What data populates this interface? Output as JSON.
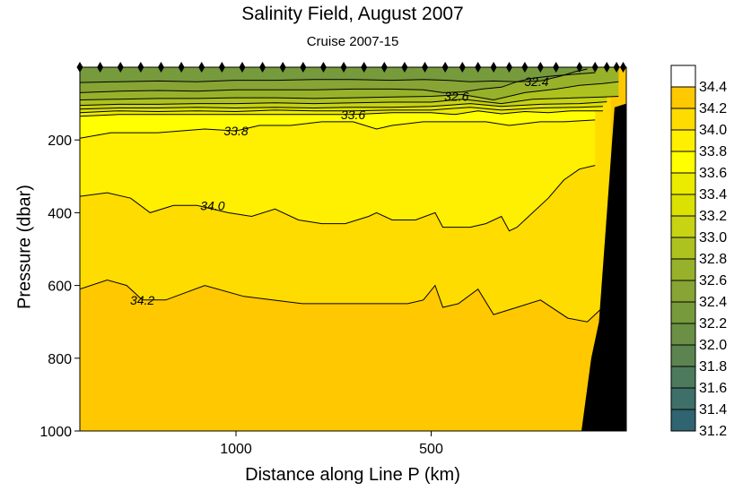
{
  "chart_data": {
    "type": "contour",
    "title": "Salinity Field,  August 2007",
    "subtitle": "Cruise 2007-15",
    "xlabel": "Distance along Line P  (km)",
    "ylabel": "Pressure  (dbar)",
    "x_axis": {
      "min": 1400,
      "max": 0,
      "reversed": true,
      "ticks": [
        1000,
        500
      ]
    },
    "y_axis": {
      "min": 0,
      "max": 1000,
      "reversed": true,
      "ticks": [
        200,
        400,
        600,
        800,
        1000
      ]
    },
    "contour_labels": [
      {
        "text": "32.4",
        "x": 230,
        "y": 40
      },
      {
        "text": "32.6",
        "x": 435,
        "y": 80
      },
      {
        "text": "33.6",
        "x": 700,
        "y": 130
      },
      {
        "text": "33.8",
        "x": 1000,
        "y": 175
      },
      {
        "text": "34.0",
        "x": 1060,
        "y": 380
      },
      {
        "text": "34.2",
        "x": 1240,
        "y": 640
      }
    ],
    "isolines": [
      {
        "value": 34.2,
        "points": [
          [
            1400,
            610
          ],
          [
            1330,
            585
          ],
          [
            1280,
            600
          ],
          [
            1240,
            640
          ],
          [
            1180,
            640
          ],
          [
            1080,
            600
          ],
          [
            980,
            630
          ],
          [
            830,
            650
          ],
          [
            700,
            650
          ],
          [
            560,
            650
          ],
          [
            520,
            640
          ],
          [
            490,
            600
          ],
          [
            470,
            660
          ],
          [
            430,
            650
          ],
          [
            380,
            610
          ],
          [
            340,
            680
          ],
          [
            280,
            660
          ],
          [
            220,
            640
          ],
          [
            150,
            690
          ],
          [
            100,
            700
          ],
          [
            40,
            640
          ]
        ]
      },
      {
        "value": 34.0,
        "points": [
          [
            1400,
            355
          ],
          [
            1330,
            345
          ],
          [
            1270,
            360
          ],
          [
            1220,
            400
          ],
          [
            1160,
            380
          ],
          [
            1100,
            380
          ],
          [
            1020,
            400
          ],
          [
            960,
            410
          ],
          [
            900,
            390
          ],
          [
            840,
            420
          ],
          [
            780,
            430
          ],
          [
            720,
            430
          ],
          [
            660,
            410
          ],
          [
            640,
            400
          ],
          [
            600,
            420
          ],
          [
            540,
            420
          ],
          [
            490,
            400
          ],
          [
            470,
            440
          ],
          [
            400,
            440
          ],
          [
            360,
            430
          ],
          [
            320,
            410
          ],
          [
            300,
            450
          ],
          [
            280,
            440
          ],
          [
            240,
            400
          ],
          [
            200,
            360
          ],
          [
            160,
            310
          ],
          [
            120,
            280
          ],
          [
            80,
            270
          ]
        ]
      },
      {
        "value": 33.8,
        "points": [
          [
            1400,
            195
          ],
          [
            1320,
            180
          ],
          [
            1200,
            180
          ],
          [
            1080,
            170
          ],
          [
            1000,
            175
          ],
          [
            940,
            160
          ],
          [
            860,
            160
          ],
          [
            780,
            150
          ],
          [
            700,
            150
          ],
          [
            640,
            170
          ],
          [
            600,
            160
          ],
          [
            520,
            150
          ],
          [
            450,
            150
          ],
          [
            360,
            150
          ],
          [
            300,
            160
          ],
          [
            220,
            150
          ],
          [
            160,
            150
          ],
          [
            80,
            145
          ]
        ]
      },
      {
        "value": 33.6,
        "points": [
          [
            1400,
            135
          ],
          [
            1300,
            130
          ],
          [
            1200,
            130
          ],
          [
            1100,
            130
          ],
          [
            1000,
            130
          ],
          [
            900,
            130
          ],
          [
            800,
            130
          ],
          [
            700,
            130
          ],
          [
            600,
            125
          ],
          [
            500,
            125
          ],
          [
            440,
            130
          ],
          [
            380,
            120
          ],
          [
            320,
            128
          ],
          [
            260,
            122
          ],
          [
            200,
            125
          ],
          [
            140,
            120
          ],
          [
            60,
            120
          ]
        ]
      },
      {
        "value": 33.4,
        "points": [
          [
            1400,
            125
          ],
          [
            1300,
            120
          ],
          [
            1200,
            122
          ],
          [
            1100,
            120
          ],
          [
            1000,
            122
          ],
          [
            900,
            118
          ],
          [
            800,
            120
          ],
          [
            700,
            120
          ],
          [
            600,
            118
          ],
          [
            500,
            118
          ],
          [
            400,
            110
          ],
          [
            320,
            118
          ],
          [
            220,
            112
          ],
          [
            120,
            110
          ],
          [
            60,
            108
          ]
        ]
      },
      {
        "value": 33.2,
        "points": [
          [
            1400,
            115
          ],
          [
            1300,
            112
          ],
          [
            1200,
            112
          ],
          [
            1100,
            110
          ],
          [
            1000,
            112
          ],
          [
            900,
            110
          ],
          [
            800,
            112
          ],
          [
            700,
            110
          ],
          [
            600,
            110
          ],
          [
            500,
            108
          ],
          [
            400,
            100
          ],
          [
            320,
            108
          ],
          [
            220,
            102
          ],
          [
            120,
            100
          ],
          [
            50,
            95
          ]
        ]
      },
      {
        "value": 33.0,
        "points": [
          [
            1400,
            105
          ],
          [
            1300,
            102
          ],
          [
            1200,
            102
          ],
          [
            1100,
            100
          ],
          [
            1000,
            100
          ],
          [
            900,
            98
          ],
          [
            800,
            100
          ],
          [
            700,
            98
          ],
          [
            600,
            96
          ],
          [
            500,
            96
          ],
          [
            420,
            88
          ],
          [
            320,
            100
          ],
          [
            240,
            88
          ],
          [
            150,
            85
          ],
          [
            60,
            82
          ],
          [
            20,
            80
          ]
        ]
      },
      {
        "value": 32.8,
        "points": [
          [
            1400,
            90
          ],
          [
            1300,
            88
          ],
          [
            1200,
            86
          ],
          [
            1100,
            86
          ],
          [
            1000,
            84
          ],
          [
            900,
            84
          ],
          [
            800,
            86
          ],
          [
            700,
            84
          ],
          [
            600,
            82
          ],
          [
            500,
            80
          ],
          [
            420,
            75
          ],
          [
            340,
            90
          ],
          [
            260,
            70
          ],
          [
            180,
            60
          ],
          [
            120,
            50
          ],
          [
            60,
            45
          ],
          [
            20,
            40
          ]
        ]
      },
      {
        "value": 32.6,
        "points": [
          [
            1400,
            70
          ],
          [
            1300,
            66
          ],
          [
            1200,
            64
          ],
          [
            1100,
            66
          ],
          [
            1000,
            62
          ],
          [
            900,
            62
          ],
          [
            800,
            62
          ],
          [
            700,
            60
          ],
          [
            600,
            60
          ],
          [
            520,
            62
          ],
          [
            470,
            70
          ],
          [
            420,
            68
          ],
          [
            370,
            60
          ],
          [
            320,
            55
          ],
          [
            280,
            40
          ],
          [
            240,
            30
          ],
          [
            200,
            25
          ],
          [
            140,
            20
          ],
          [
            80,
            15
          ]
        ]
      },
      {
        "value": 32.4,
        "points": [
          [
            1400,
            42
          ],
          [
            1300,
            40
          ],
          [
            1200,
            38
          ],
          [
            1100,
            40
          ],
          [
            1000,
            36
          ],
          [
            900,
            36
          ],
          [
            800,
            34
          ],
          [
            700,
            34
          ],
          [
            600,
            36
          ],
          [
            520,
            34
          ],
          [
            460,
            36
          ],
          [
            400,
            40
          ],
          [
            340,
            38
          ],
          [
            280,
            40
          ],
          [
            220,
            38
          ],
          [
            170,
            25
          ],
          [
            130,
            12
          ],
          [
            100,
            5
          ]
        ]
      }
    ],
    "filled_bands": [
      {
        "range": "34.2-34.4",
        "color": "#ffc800"
      },
      {
        "range": "34.0-34.2",
        "color": "#ffdc00"
      },
      {
        "range": "33.8-34.0",
        "color": "#ffef00"
      },
      {
        "range": "33.6-33.8",
        "color": "#ffff00"
      },
      {
        "range": "33.4-33.6",
        "color": "#ebeb00"
      },
      {
        "range": "33.2-33.4",
        "color": "#dbe100"
      },
      {
        "range": "33.0-33.2",
        "color": "#c7d313"
      },
      {
        "range": "32.8-33.0",
        "color": "#adc21f"
      },
      {
        "range": "32.6-32.8",
        "color": "#97b22a"
      },
      {
        "range": "32.4-32.6",
        "color": "#87a435"
      },
      {
        "range": "32.2-32.4",
        "color": "#769a3c"
      },
      {
        "range": "32.0-32.2",
        "color": "#6a8f45"
      }
    ],
    "colorbar": {
      "levels": [
        "34.4",
        "34.2",
        "34.0",
        "33.8",
        "33.6",
        "33.4",
        "33.2",
        "33.0",
        "32.8",
        "32.6",
        "32.4",
        "32.2",
        "32.0",
        "31.8",
        "31.6",
        "31.4",
        "31.2"
      ],
      "colors": [
        "#ffffff",
        "#ffc800",
        "#ffdc00",
        "#ffef00",
        "#ffff00",
        "#ebeb00",
        "#dbe100",
        "#c7d313",
        "#adc21f",
        "#97b22a",
        "#87a435",
        "#769a3c",
        "#6a8f45",
        "#5c8451",
        "#4d7a5c",
        "#3e6f68",
        "#2f6470"
      ]
    },
    "stations_km": [
      1400,
      1348,
      1296,
      1244,
      1192,
      1140,
      1088,
      1036,
      984,
      932,
      880,
      828,
      776,
      724,
      672,
      620,
      568,
      516,
      464,
      420,
      380,
      340,
      300,
      260,
      220,
      180,
      120,
      80,
      50,
      25,
      8
    ],
    "bottom_profile": [
      [
        0,
        100
      ],
      [
        30,
        110
      ],
      [
        70,
        700
      ],
      [
        90,
        800
      ],
      [
        115,
        1000
      ]
    ],
    "bottom_color": "#000000",
    "grid": false,
    "legend": "colorbar-right"
  }
}
